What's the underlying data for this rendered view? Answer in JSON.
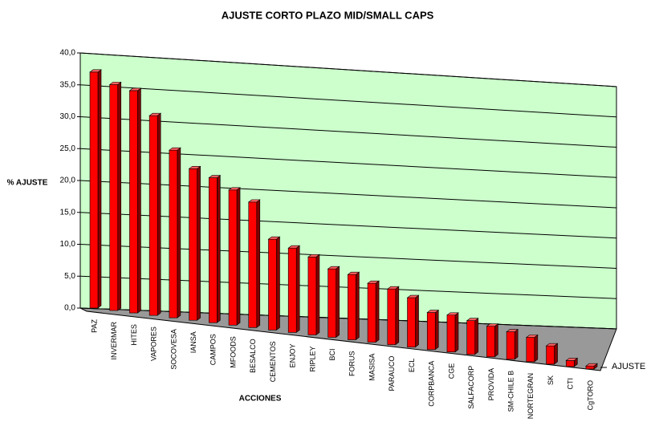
{
  "chart_data": {
    "type": "bar3d",
    "title": "AJUSTE CORTO PLAZO MID/SMALL CAPS",
    "x_label": "ACCIONES",
    "y_label": "% AJUSTE",
    "categories": [
      "PAZ",
      "INVERMAR",
      "HITES",
      "VAPORES",
      "SOCOVESA",
      "IANSA",
      "CAMPOS",
      "MFOODS",
      "BESALCO",
      "CEMENTOS",
      "ENJOY",
      "RIPLEY",
      "BCI",
      "FORUS",
      "MASISA",
      "PARAUCO",
      "ECL",
      "CORPBANCA",
      "CGE",
      "SALFACORP",
      "PROVIDA",
      "SM-CHILE B",
      "NORTEGRAN",
      "SK",
      "CTI",
      "CgTORO"
    ],
    "series": [
      {
        "name": "AJUSTE",
        "color": "#ff0000",
        "values": [
          37,
          35.5,
          35,
          31.5,
          26.5,
          24,
          23,
          21.5,
          20,
          14.5,
          13.5,
          12.5,
          11,
          10.5,
          9.5,
          9,
          8,
          6,
          6,
          5.5,
          5,
          4.5,
          4,
          3,
          1,
          0.5
        ]
      }
    ],
    "ylim": [
      0,
      40
    ],
    "yticks": [
      {
        "value": 0,
        "label": "0,0"
      },
      {
        "value": 5,
        "label": "5,0"
      },
      {
        "value": 10,
        "label": "10,0"
      },
      {
        "value": 15,
        "label": "15,0"
      },
      {
        "value": 20,
        "label": "20,0"
      },
      {
        "value": 25,
        "label": "25,0"
      },
      {
        "value": 30,
        "label": "30,0"
      },
      {
        "value": 35,
        "label": "35,0"
      },
      {
        "value": 40,
        "label": "40,0"
      }
    ],
    "grid": true,
    "wall_color": "#ccffcc",
    "floor_color": "#999999"
  }
}
